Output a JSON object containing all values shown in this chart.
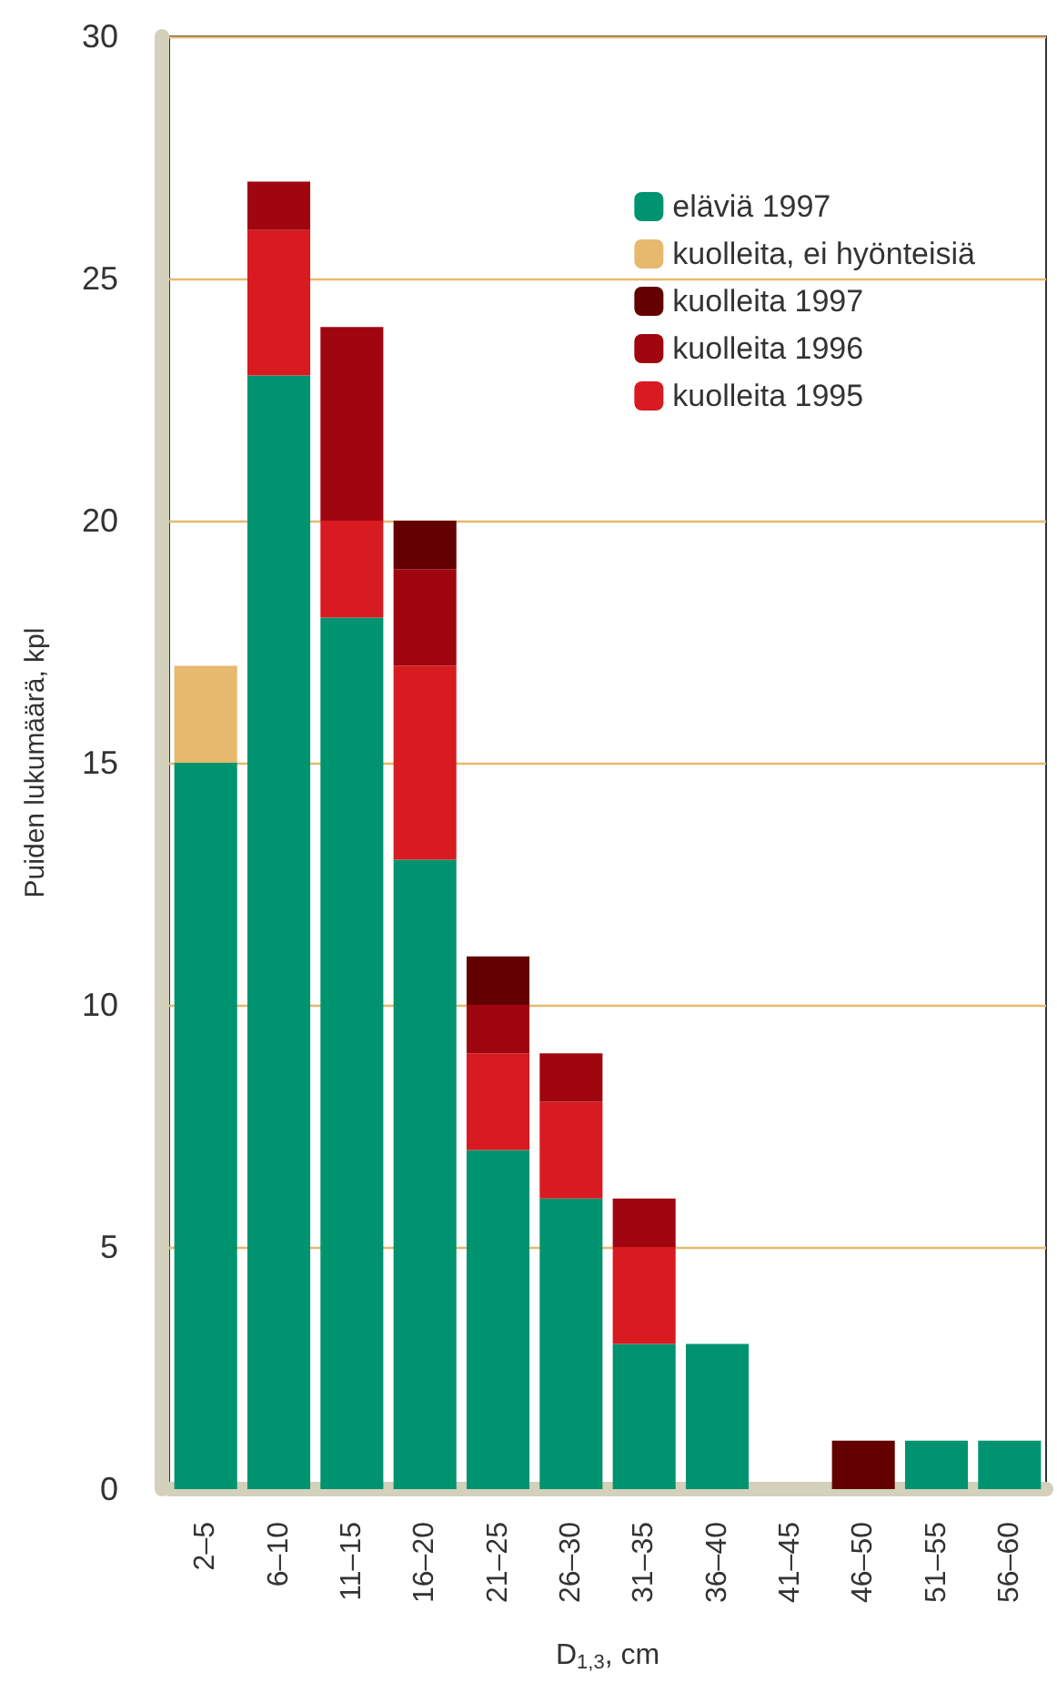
{
  "chart_data": {
    "type": "bar",
    "stacked": true,
    "xlabel": "D$_{1,3}$, cm",
    "ylabel": "Puiden lukumäärä, kpl",
    "categories": [
      "2–5",
      "6–10",
      "11–15",
      "16–20",
      "21–25",
      "26–30",
      "31–35",
      "36–40",
      "41–45",
      "46–50",
      "51–55",
      "56–60"
    ],
    "series": [
      {
        "name": "eläviä 1997",
        "color": "#00936f",
        "values": [
          15,
          23,
          18,
          13,
          7,
          6,
          3,
          3,
          0,
          0,
          1,
          1
        ]
      },
      {
        "name": "kuolleita 1995",
        "color": "#d81a21",
        "values": [
          0,
          3,
          2,
          4,
          2,
          2,
          2,
          0,
          0,
          0,
          0,
          0
        ]
      },
      {
        "name": "kuolleita 1996",
        "color": "#a0060f",
        "values": [
          0,
          1,
          4,
          2,
          1,
          1,
          1,
          0,
          0,
          0,
          0,
          0
        ]
      },
      {
        "name": "kuolleita 1997",
        "color": "#630000",
        "values": [
          0,
          0,
          0,
          1,
          1,
          0,
          0,
          0,
          0,
          1,
          0,
          0
        ]
      },
      {
        "name": "kuolleita, ei hyönteisiä",
        "color": "#e6b96e",
        "values": [
          2,
          0,
          0,
          0,
          0,
          0,
          0,
          0,
          0,
          0,
          0,
          0
        ]
      }
    ],
    "ylim": [
      0,
      30
    ],
    "yticks": [
      0,
      5,
      10,
      15,
      20,
      25,
      30
    ],
    "grid": "y",
    "legend": "top right"
  }
}
